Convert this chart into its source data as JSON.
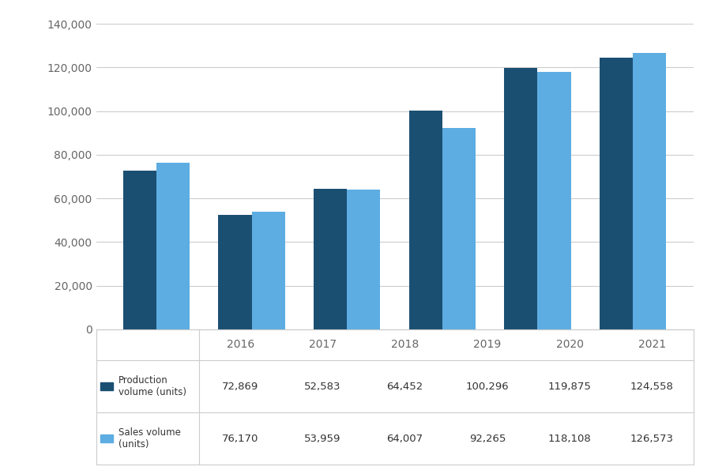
{
  "years": [
    "2016",
    "2017",
    "2018",
    "2019",
    "2020",
    "2021"
  ],
  "production": [
    72869,
    52583,
    64452,
    100296,
    119875,
    124558
  ],
  "sales": [
    76170,
    53959,
    64007,
    92265,
    118108,
    126573
  ],
  "production_color": "#1b4f72",
  "sales_color": "#5dade2",
  "background_color": "#ffffff",
  "grid_color": "#cccccc",
  "ylim": [
    0,
    140000
  ],
  "yticks": [
    0,
    20000,
    40000,
    60000,
    80000,
    100000,
    120000,
    140000
  ],
  "bar_width": 0.35,
  "tick_label_color": "#666666",
  "tick_label_fontsize": 10,
  "table_text_color": "#333333",
  "table_fontsize": 9.5
}
